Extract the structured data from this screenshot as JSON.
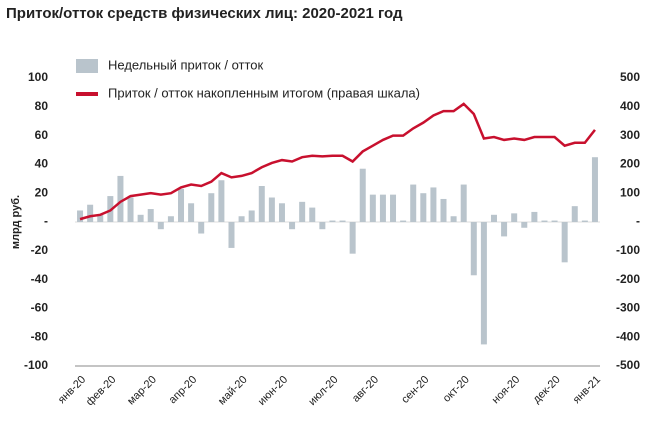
{
  "chart_data": {
    "type": "bar_line",
    "title": "Приток/отток средств физических лиц: 2020-2021 год",
    "y_label": "млрд руб.",
    "categories": [
      "янв-20",
      null,
      null,
      "фев-20",
      null,
      null,
      null,
      "мар-20",
      null,
      null,
      null,
      "апр-20",
      null,
      null,
      null,
      null,
      "май-20",
      null,
      null,
      null,
      "июн-20",
      null,
      null,
      null,
      null,
      "июл-20",
      null,
      null,
      null,
      "авг-20",
      null,
      null,
      null,
      null,
      "сен-20",
      null,
      null,
      null,
      "окт-20",
      null,
      null,
      null,
      null,
      "ноя-20",
      null,
      null,
      null,
      "дек-20",
      null,
      null,
      null,
      "янв-21"
    ],
    "series": [
      {
        "name": "Недельный приток / отток",
        "kind": "bar",
        "color": "#b9c4cc",
        "values": [
          8,
          12,
          5,
          18,
          32,
          17,
          5,
          9,
          -5,
          4,
          23,
          13,
          -8,
          20,
          29,
          -18,
          4,
          8,
          25,
          17,
          13,
          -5,
          14,
          10,
          -5,
          1,
          1,
          -22,
          37,
          19,
          19,
          19,
          1,
          26,
          20,
          24,
          16,
          4,
          26,
          -37,
          -85,
          5,
          -10,
          6,
          -4,
          7,
          1,
          1,
          -28,
          11,
          1,
          45
        ]
      },
      {
        "name": "Приток / отток накопленным итогом (правая шкала)",
        "kind": "line",
        "axis": "y2",
        "color": "#c8102e",
        "values": [
          10,
          20,
          25,
          40,
          70,
          90,
          95,
          100,
          95,
          100,
          120,
          130,
          125,
          140,
          170,
          155,
          160,
          170,
          190,
          205,
          215,
          210,
          225,
          230,
          228,
          230,
          230,
          210,
          245,
          265,
          285,
          300,
          300,
          325,
          345,
          370,
          385,
          385,
          410,
          375,
          290,
          295,
          285,
          290,
          285,
          295,
          295,
          295,
          265,
          275,
          275,
          320
        ]
      }
    ],
    "ylim": [
      -100,
      100
    ],
    "yticks": [
      100,
      80,
      60,
      40,
      20,
      {
        "value": 0,
        "label": "-"
      },
      -20,
      -40,
      -60,
      -80,
      -100
    ],
    "y2lim": [
      -500,
      500
    ],
    "y2ticks": [
      500,
      400,
      300,
      200,
      100,
      {
        "value": 0,
        "label": "-"
      },
      -100,
      -200,
      -300,
      -400,
      -500
    ]
  }
}
